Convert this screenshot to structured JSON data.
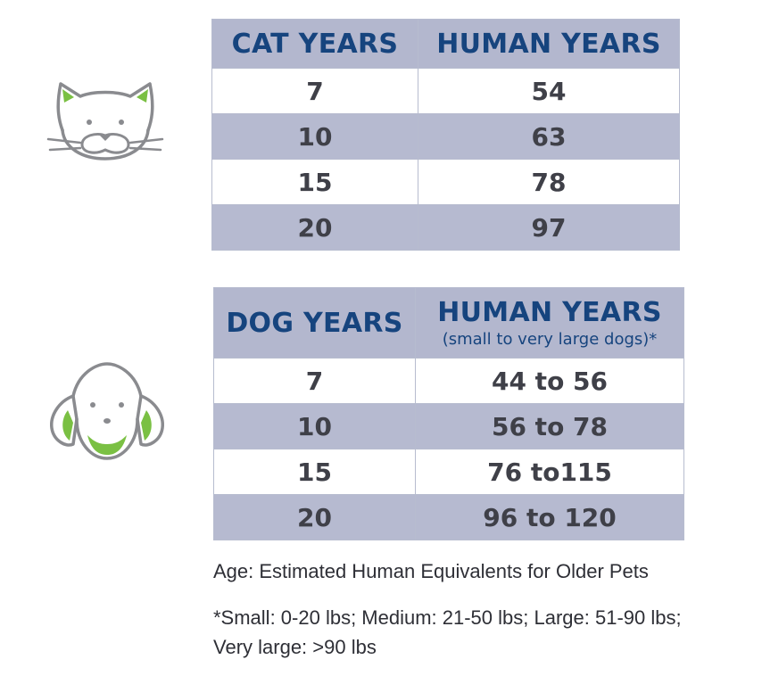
{
  "cat_table": {
    "headers": [
      "CAT YEARS",
      "HUMAN YEARS"
    ],
    "rows": [
      [
        "7",
        "54"
      ],
      [
        "10",
        "63"
      ],
      [
        "15",
        "78"
      ],
      [
        "20",
        "97"
      ]
    ]
  },
  "dog_table": {
    "headers": [
      "DOG YEARS",
      "HUMAN YEARS"
    ],
    "header_note": "(small to very large dogs)*",
    "rows": [
      [
        "7",
        "44 to 56"
      ],
      [
        "10",
        "56 to 78"
      ],
      [
        "15",
        "76 to115"
      ],
      [
        "20",
        "96 to 120"
      ]
    ]
  },
  "caption": "Age: Estimated Human Equivalents for Older Pets",
  "footnote": "*Small: 0-20 lbs; Medium: 21-50 lbs; Large: 51-90 lbs; Very large: >90 lbs",
  "icons": {
    "cat": "cat-face-icon",
    "dog": "dog-face-icon"
  },
  "colors": {
    "header_bg": "#b3b7ce",
    "header_text": "#16447e",
    "stripe_bg": "#b6bad0",
    "icon_outline": "#8a8b8f",
    "icon_accent": "#7ac043"
  }
}
